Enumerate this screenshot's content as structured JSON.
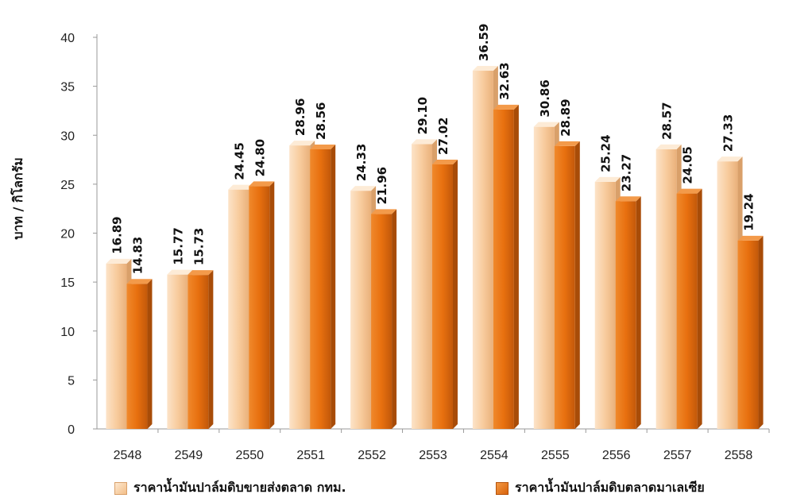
{
  "chart_data": {
    "type": "bar",
    "ylabel": "บาท / กิโลกรัม",
    "ylim": [
      0,
      40
    ],
    "yticks": [
      "0",
      "5",
      "10",
      "15",
      "20",
      "25",
      "30",
      "35",
      "40"
    ],
    "categories": [
      "2548",
      "2549",
      "2550",
      "2551",
      "2552",
      "2553",
      "2554",
      "2555",
      "2556",
      "2557",
      "2558"
    ],
    "series": [
      {
        "name": "ราคาน้ำมันปาล์มดิบขายส่งตลาด กทม.",
        "color": "#F8C99A",
        "values": [
          16.89,
          15.77,
          24.45,
          28.96,
          24.33,
          29.1,
          36.59,
          30.86,
          25.24,
          28.57,
          27.33
        ],
        "labels": [
          "16.89",
          "15.77",
          "24.45",
          "28.96",
          "24.33",
          "29.10",
          "36.59",
          "30.86",
          "25.24",
          "28.57",
          "27.33"
        ]
      },
      {
        "name": "ราคาน้ำมันปาล์มดิบตลาดมาเลเซีย",
        "color": "#E8700F",
        "values": [
          14.83,
          15.73,
          24.8,
          28.56,
          21.96,
          27.02,
          32.63,
          28.89,
          23.27,
          24.05,
          19.24
        ],
        "labels": [
          "14.83",
          "15.73",
          "24.80",
          "28.56",
          "21.96",
          "27.02",
          "32.63",
          "28.89",
          "23.27",
          "24.05",
          "19.24"
        ]
      }
    ],
    "grid": false,
    "legend_position": "bottom"
  }
}
